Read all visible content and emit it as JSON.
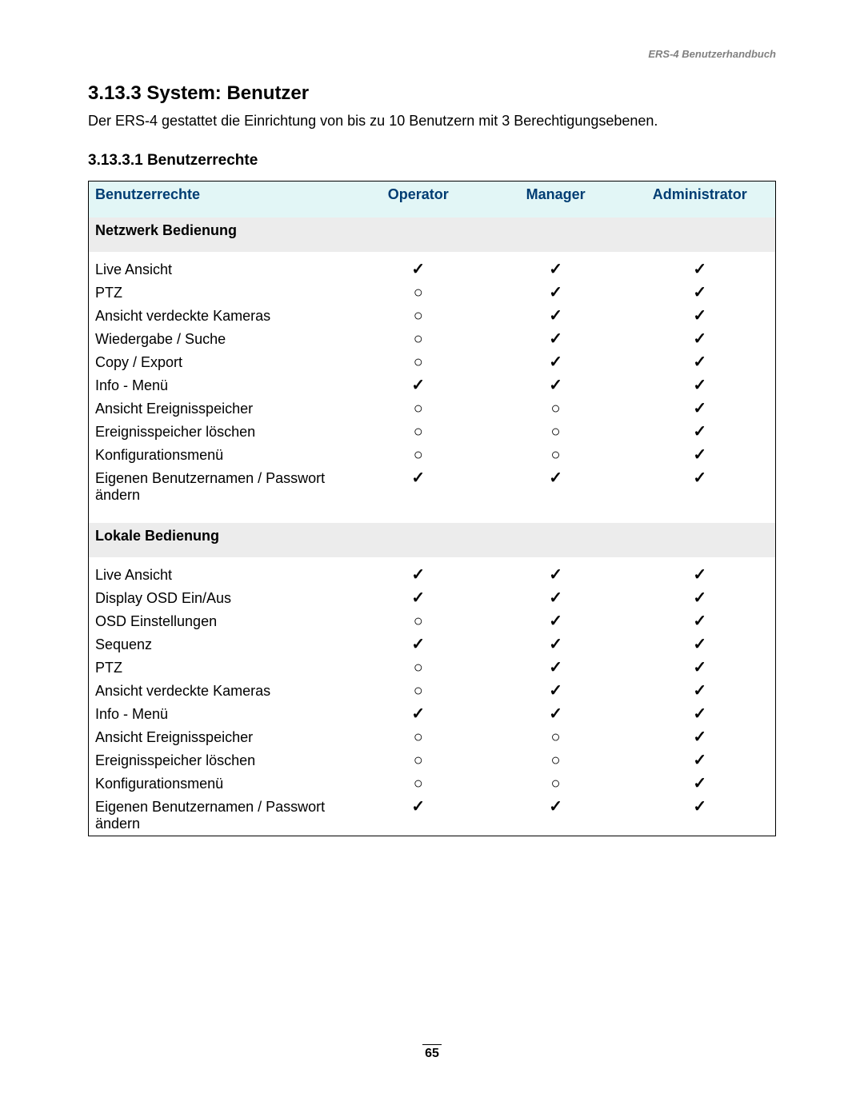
{
  "header": {
    "doc_title": "ERS-4  Benutzerhandbuch"
  },
  "section": {
    "number_title": "3.13.3  System: Benutzer",
    "intro": "Der ERS-4 gestattet die Einrichtung von bis zu 10 Benutzern mit 3 Berechtigungsebenen.",
    "subsection_title": "3.13.3.1 Benutzerrechte"
  },
  "table": {
    "header_bg": "#e2f6f6",
    "header_color": "#003d73",
    "group_bg": "#ececec",
    "border_color": "#000000",
    "columns": [
      "Benutzerrechte",
      "Operator",
      "Manager",
      "Administrator"
    ],
    "symbols": {
      "check": "✓",
      "circle": "○"
    },
    "groups": [
      {
        "title": "Netzwerk Bedienung",
        "rows": [
          {
            "label": "Live Ansicht",
            "op": "check",
            "mgr": "check",
            "admin": "check"
          },
          {
            "label": "PTZ",
            "op": "circle",
            "mgr": "check",
            "admin": "check"
          },
          {
            "label": "Ansicht verdeckte Kameras",
            "op": "circle",
            "mgr": "check",
            "admin": "check"
          },
          {
            "label": "Wiedergabe / Suche",
            "op": "circle",
            "mgr": "check",
            "admin": "check"
          },
          {
            "label": "Copy / Export",
            "op": "circle",
            "mgr": "check",
            "admin": "check"
          },
          {
            "label": "Info - Menü",
            "op": "check",
            "mgr": "check",
            "admin": "check"
          },
          {
            "label": "Ansicht Ereignisspeicher",
            "op": "circle",
            "mgr": "circle",
            "admin": "check"
          },
          {
            "label": "Ereignisspeicher löschen",
            "op": "circle",
            "mgr": "circle",
            "admin": "check"
          },
          {
            "label": "Konfigurationsmenü",
            "op": "circle",
            "mgr": "circle",
            "admin": "check"
          },
          {
            "label": "Eigenen Benutzernamen / Passwort ändern",
            "op": "check",
            "mgr": "check",
            "admin": "check"
          }
        ]
      },
      {
        "title": "Lokale Bedienung",
        "rows": [
          {
            "label": "Live Ansicht",
            "op": "check",
            "mgr": "check",
            "admin": "check"
          },
          {
            "label": "Display OSD Ein/Aus",
            "op": "check",
            "mgr": "check",
            "admin": "check"
          },
          {
            "label": "OSD Einstellungen",
            "op": "circle",
            "mgr": "check",
            "admin": "check"
          },
          {
            "label": "Sequenz",
            "op": "check",
            "mgr": "check",
            "admin": "check"
          },
          {
            "label": "PTZ",
            "op": "circle",
            "mgr": "check",
            "admin": "check"
          },
          {
            "label": "Ansicht verdeckte Kameras",
            "op": "circle",
            "mgr": "check",
            "admin": "check"
          },
          {
            "label": "Info - Menü",
            "op": "check",
            "mgr": "check",
            "admin": "check"
          },
          {
            "label": "Ansicht Ereignisspeicher",
            "op": "circle",
            "mgr": "circle",
            "admin": "check"
          },
          {
            "label": "Ereignisspeicher löschen",
            "op": "circle",
            "mgr": "circle",
            "admin": "check"
          },
          {
            "label": "Konfigurationsmenü",
            "op": "circle",
            "mgr": "circle",
            "admin": "check"
          },
          {
            "label": "Eigenen Benutzernamen / Passwort ändern",
            "op": "check",
            "mgr": "check",
            "admin": "check"
          }
        ]
      }
    ]
  },
  "footer": {
    "page_number": "65"
  }
}
